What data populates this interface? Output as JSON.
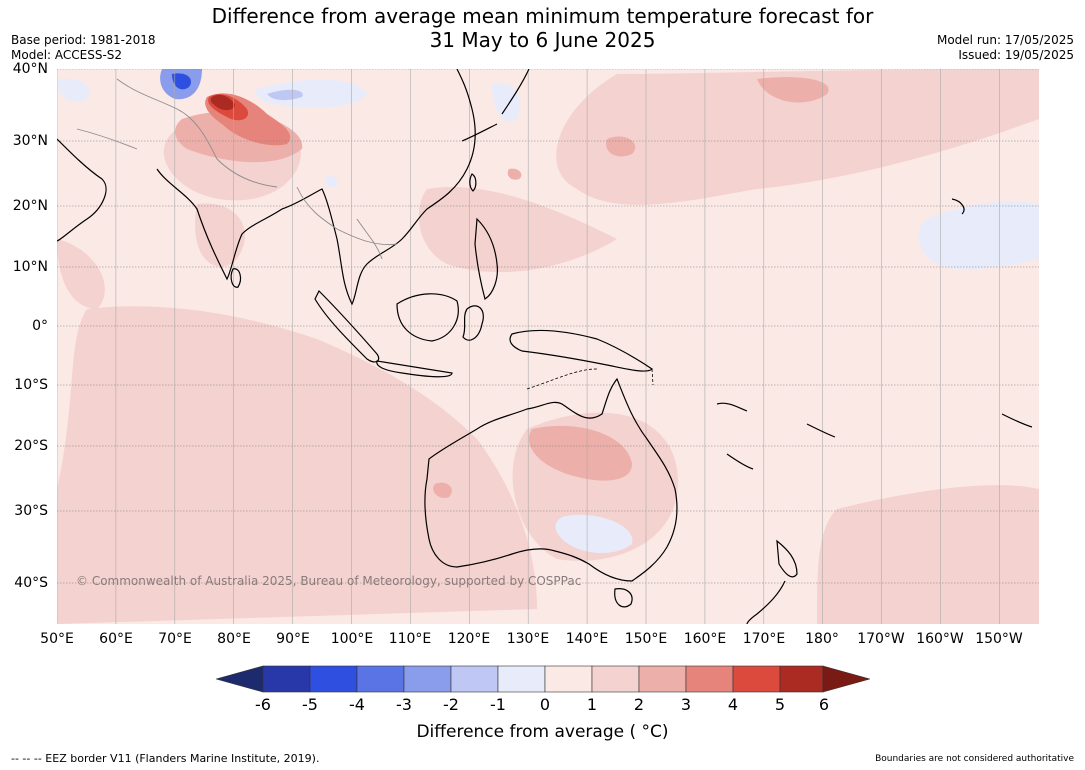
{
  "title": "Difference from average mean minimum temperature forecast for\n31 May to 6 June 2025",
  "meta_left": {
    "base_period": "Base period: 1981-2018",
    "model": "Model: ACCESS-S2"
  },
  "meta_right": {
    "model_run": "Model run: 17/05/2025",
    "issued": "Issued: 19/05/2025"
  },
  "lat_labels": [
    "40°N",
    "30°N",
    "20°N",
    "10°N",
    "0°",
    "10°S",
    "20°S",
    "30°S",
    "40°S"
  ],
  "lon_labels": [
    "50°E",
    "60°E",
    "70°E",
    "80°E",
    "90°E",
    "100°E",
    "110°E",
    "120°E",
    "130°E",
    "140°E",
    "150°E",
    "160°E",
    "170°E",
    "180°",
    "170°W",
    "160°W",
    "150°W"
  ],
  "copyright": "© Commonwealth of Australia 2025, Bureau of Meteorology, supported by COSPPac",
  "colorbar": {
    "ticks": [
      "-6",
      "-5",
      "-4",
      "-3",
      "-2",
      "-1",
      "0",
      "1",
      "2",
      "3",
      "4",
      "5",
      "6"
    ],
    "colors": [
      "#1d2a6e",
      "#2838a8",
      "#2f4fe0",
      "#5a74e6",
      "#8a9cec",
      "#bfc8f4",
      "#e8ecfa",
      "#fbe9e6",
      "#f4d2cf",
      "#edafa9",
      "#e6847c",
      "#db4a3c",
      "#ab2a22",
      "#7a1a14"
    ],
    "label": "Difference from average ( °C)"
  },
  "eez_note": "-- -- -- EEZ border V11 (Flanders Marine Institute, 2019).",
  "boundary_note": "Boundaries are not considered authoritative"
}
